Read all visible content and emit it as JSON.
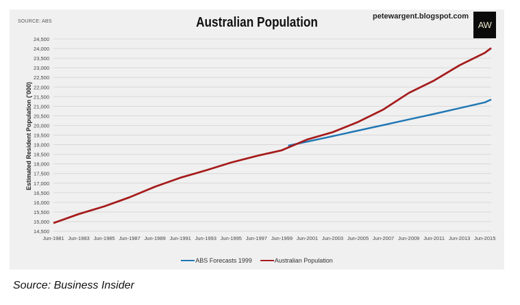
{
  "header": {
    "source_tag": "SOURCE: ABS",
    "title": "Australian Population",
    "blog_url": "petewargent.blogspot.com",
    "logo_text": "AW"
  },
  "caption": "Source: Business Insider",
  "colors": {
    "panel_bg": "#f0f0f0",
    "gridline": "#d8d8d8",
    "australian_population": "#a61c1c",
    "abs_forecast": "#1f77b4",
    "logo_bg": "#0a0a0a"
  },
  "chart_data": {
    "type": "line",
    "title": "Australian Population",
    "xlabel": "",
    "ylabel": "Estimated Resident Population ('000)",
    "ylim": [
      14500,
      24500
    ],
    "yticks": [
      14500,
      15000,
      15500,
      16000,
      16500,
      17000,
      17500,
      18000,
      18500,
      19000,
      19500,
      20000,
      20500,
      21000,
      21500,
      22000,
      22500,
      23000,
      23500,
      24000,
      24500
    ],
    "ytick_labels": [
      "14,500",
      "15,000",
      "15,500",
      "16,000",
      "16,500",
      "17,000",
      "17,500",
      "18,000",
      "18,500",
      "19,000",
      "19,500",
      "20,000",
      "20,500",
      "21,000",
      "21,500",
      "22,000",
      "22,500",
      "23,000",
      "23,500",
      "24,000",
      "24,500"
    ],
    "xtick_labels": [
      "Jun-1981",
      "Jun-1983",
      "Jun-1985",
      "Jun-1987",
      "Jun-1989",
      "Jun-1991",
      "Jun-1993",
      "Jun-1995",
      "Jun-1997",
      "Jun-1999",
      "Jun-2001",
      "Jun-2003",
      "Jun-2005",
      "Jun-2007",
      "Jun-2009",
      "Jun-2011",
      "Jun-2013",
      "Jun-2015"
    ],
    "grid": true,
    "legend_position": "bottom",
    "series": [
      {
        "name": "ABS Forecasts 1999",
        "color": "#1f77b4",
        "x": [
          1999.5,
          2001,
          2003,
          2005,
          2007,
          2009,
          2011,
          2013,
          2015,
          2015.5
        ],
        "values": [
          18950,
          19160,
          19440,
          19730,
          20020,
          20310,
          20600,
          20900,
          21200,
          21350
        ]
      },
      {
        "name": "Australian Population",
        "color": "#a61c1c",
        "x": [
          1981,
          1983,
          1985,
          1987,
          1989,
          1991,
          1993,
          1995,
          1997,
          1999,
          2001,
          2003,
          2005,
          2007,
          2009,
          2011,
          2013,
          2015,
          2015.5
        ],
        "values": [
          14920,
          15390,
          15790,
          16260,
          16810,
          17280,
          17660,
          18070,
          18410,
          18710,
          19270,
          19650,
          20180,
          20830,
          21690,
          22340,
          23130,
          23780,
          24030
        ]
      }
    ]
  },
  "legend": [
    {
      "label": "ABS Forecasts 1999"
    },
    {
      "label": "Australian Population"
    }
  ]
}
